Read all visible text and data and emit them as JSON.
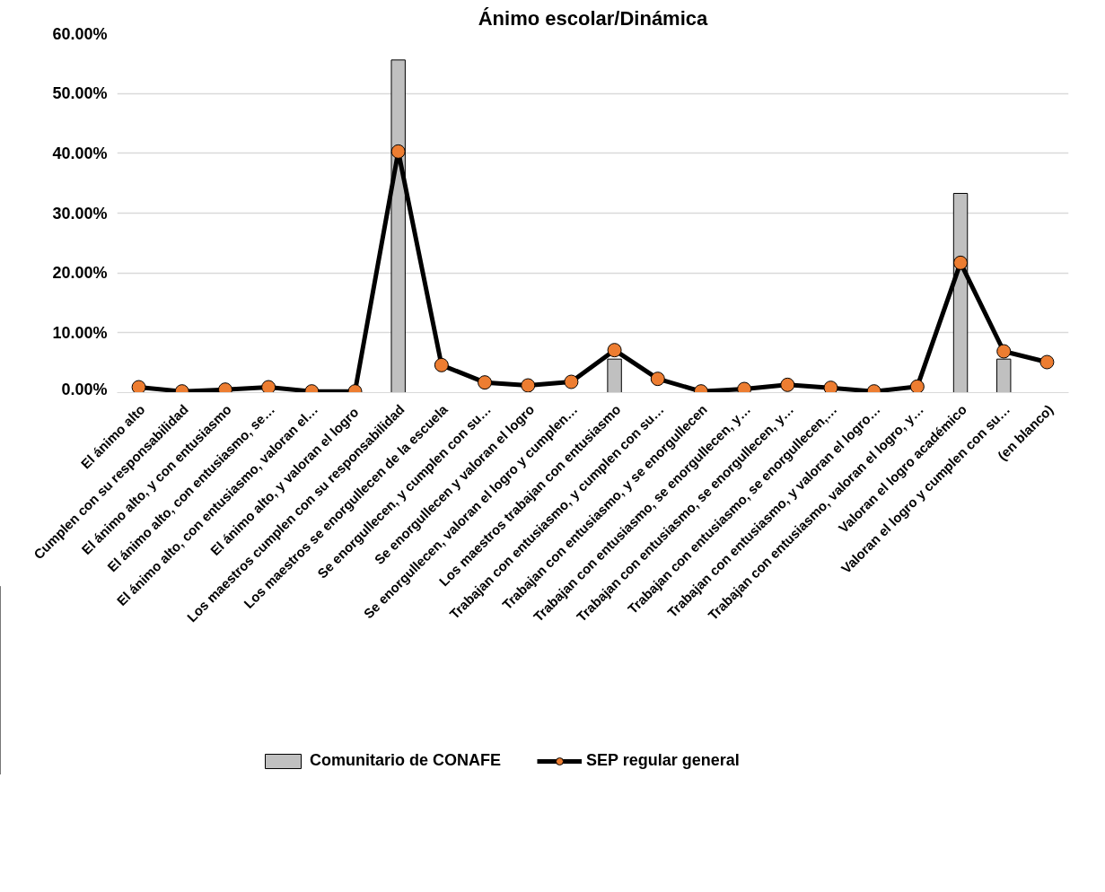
{
  "chart_data": {
    "type": "bar",
    "title": "Ánimo escolar/Dinámica",
    "categories": [
      "El ánimo alto",
      "Cumplen con su responsabilidad",
      "El ánimo alto, y con entusiasmo",
      "El ánimo alto, con entusiasmo, se…",
      "El ánimo alto, con entusiasmo, valoran el…",
      "El ánimo  alto, y valoran el logro",
      "Los maestros cumplen con su responsabilidad",
      "Los maestros se enorgullecen de la escuela",
      "Se enorgullecen, y cumplen con su…",
      "Se enorgullecen y valoran el logro",
      "Se enorgullecen, valoran el logro y cumplen…",
      "Los maestros trabajan con entusiasmo",
      "Trabajan con entusiasmo, y cumplen con su…",
      "Trabajan con entusiasmo, y se enorgullecen",
      "Trabajan con entusiasmo, se enorgullecen, y…",
      "Trabajan con entusiasmo, se enorgullecen, y…",
      "Trabajan con entusiasmo, se enorgullecen,…",
      "Trabajan con entusiasmo, y valoran el logro…",
      "Trabajan con entusiasmo, valoran el logro, y…",
      "Valoran el logro académico",
      "Valoran el logro y cumplen con su…",
      "(en blanco)"
    ],
    "series": [
      {
        "name": "Comunitario de CONAFE",
        "color": "#c0c0c0",
        "values": [
          null,
          null,
          null,
          null,
          null,
          null,
          55.6,
          null,
          null,
          null,
          null,
          5.6,
          null,
          null,
          null,
          null,
          null,
          null,
          null,
          33.3,
          5.6,
          null
        ]
      },
      {
        "name": "SEP regular general",
        "type": "line",
        "color": "#000000",
        "marker": "circle",
        "values": [
          0.9,
          0.2,
          0.5,
          0.9,
          0.2,
          0.2,
          40.3,
          4.6,
          1.7,
          1.2,
          1.8,
          7.1,
          2.3,
          0.2,
          0.6,
          1.3,
          0.8,
          0.2,
          1.0,
          21.7,
          6.9,
          5.1
        ]
      }
    ],
    "ylim": [
      0,
      60
    ],
    "yticks": [
      {
        "value": 0,
        "label": "0.00%"
      },
      {
        "value": 10,
        "label": "10.00%"
      },
      {
        "value": 20,
        "label": "20.00%"
      },
      {
        "value": 30,
        "label": "30.00%"
      },
      {
        "value": 40,
        "label": "40.00%"
      },
      {
        "value": 50,
        "label": "50.00%"
      },
      {
        "value": 60,
        "label": "60.00%"
      }
    ],
    "grid": "y",
    "legend": "bottom"
  }
}
